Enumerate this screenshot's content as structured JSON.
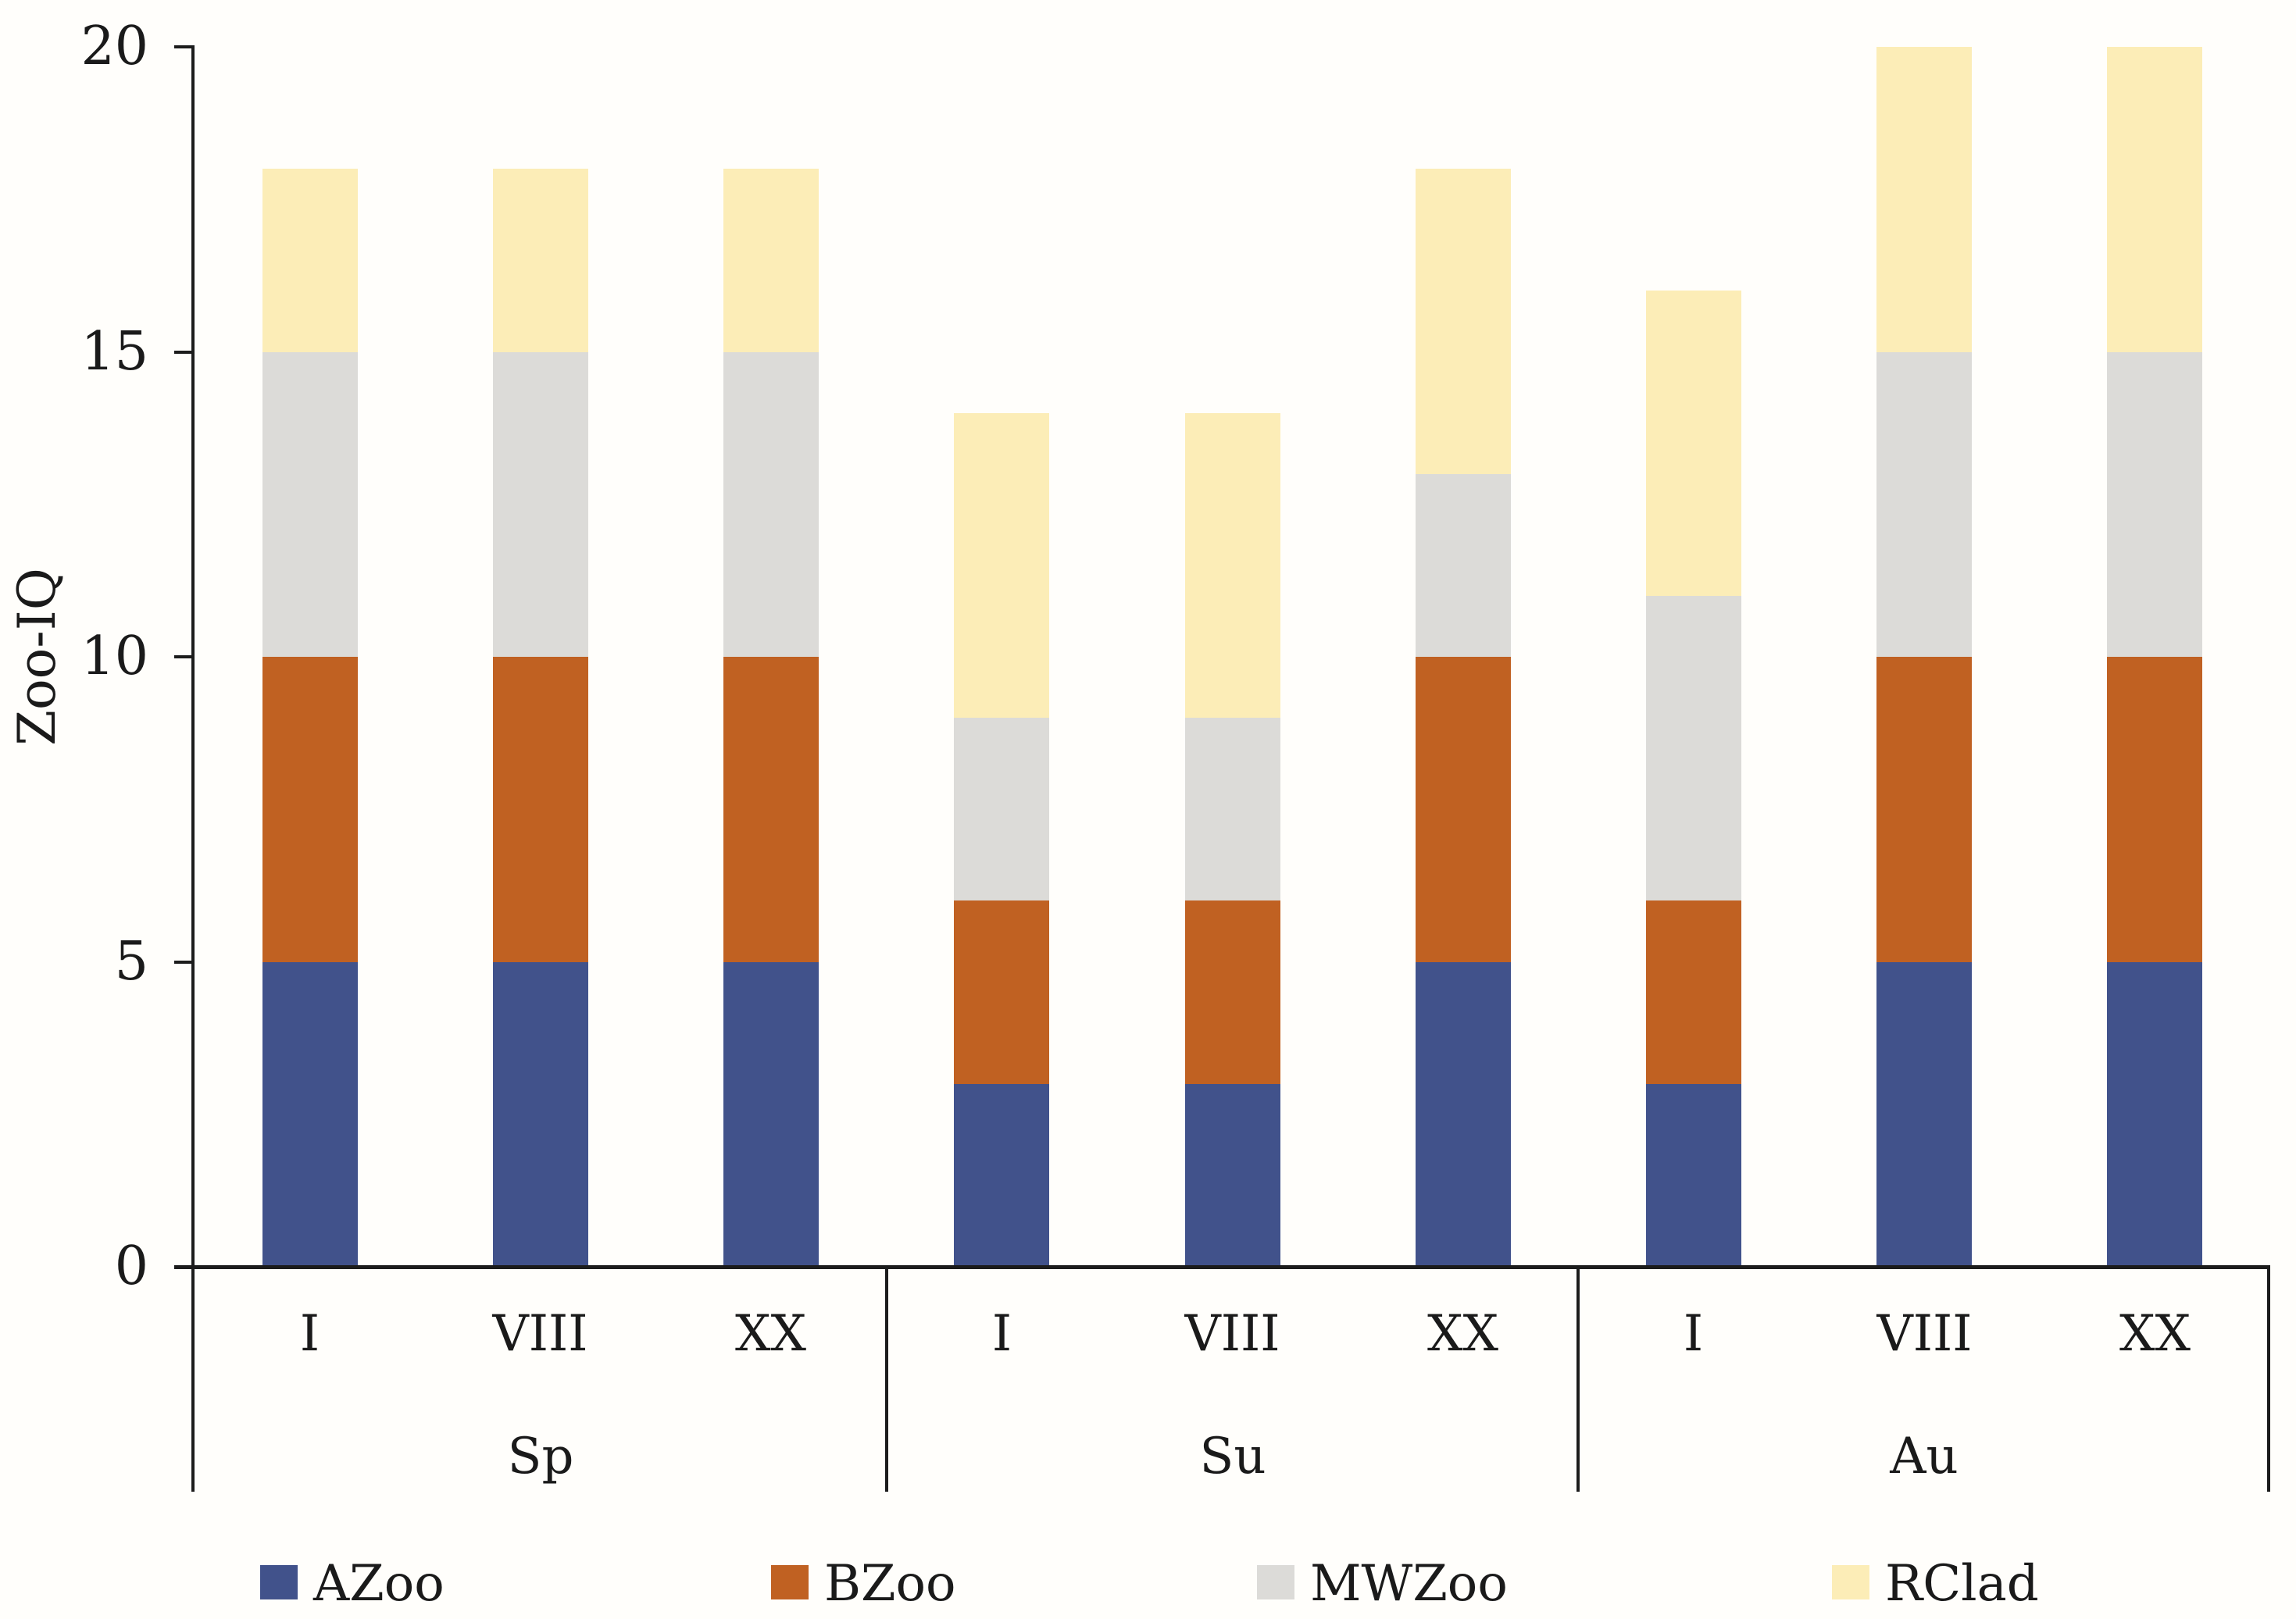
{
  "chart_data": {
    "type": "bar",
    "stacked": true,
    "title": "",
    "ylabel": "Zoo-IQ",
    "xlabel": "",
    "ylim": [
      0,
      20
    ],
    "yticks": [
      0,
      5,
      10,
      15,
      20
    ],
    "grid": false,
    "legend_position": "bottom",
    "axis_color": "#1C1C1C",
    "background_color": "#FFFEFB",
    "groups": [
      "Sp",
      "Su",
      "Au"
    ],
    "subcategories": [
      "I",
      "VIII",
      "XX"
    ],
    "categories": [
      "Sp-I",
      "Sp-VIII",
      "Sp-XX",
      "Su-I",
      "Su-VIII",
      "Su-XX",
      "Au-I",
      "Au-VIII",
      "Au-XX"
    ],
    "series": [
      {
        "name": "AZoo",
        "color": "#41528B",
        "values": [
          5,
          5,
          5,
          3,
          3,
          5,
          3,
          5,
          5
        ]
      },
      {
        "name": "BZoo",
        "color": "#C06122",
        "values": [
          5,
          5,
          5,
          3,
          3,
          5,
          3,
          5,
          5
        ]
      },
      {
        "name": "MWZoo",
        "color": "#DCDBD8",
        "values": [
          5,
          5,
          5,
          3,
          3,
          3,
          5,
          5,
          5
        ]
      },
      {
        "name": "RClad",
        "color": "#FCEDB7",
        "values": [
          3,
          3,
          3,
          5,
          5,
          5,
          5,
          5,
          5
        ]
      }
    ],
    "stack_totals": [
      18,
      18,
      18,
      14,
      14,
      18,
      16,
      20,
      20
    ]
  }
}
